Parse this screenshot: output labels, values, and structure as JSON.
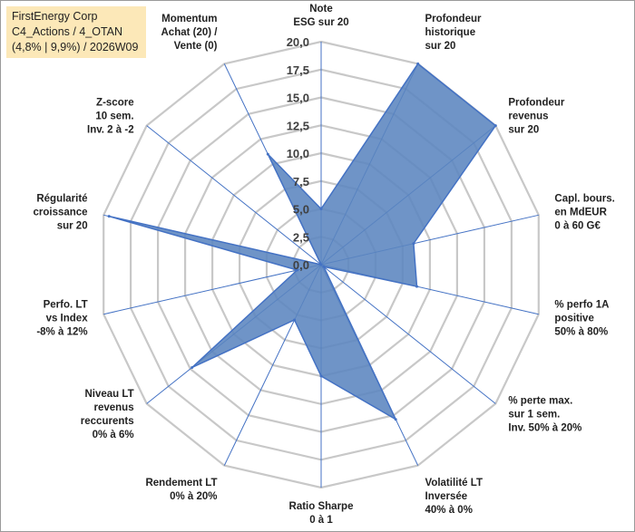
{
  "title": {
    "company": "FirstEnergy Corp",
    "portfolio": "C4_Actions / 4_OTAN",
    "info": "(4,8% | 9,9%) / 2026W09"
  },
  "colors": {
    "fill": "#5b85bf",
    "stroke": "#4472c4",
    "grid": "#c8c8c8",
    "axis": "#4472c4",
    "title_bg": "#fce8b8"
  },
  "chart_data": {
    "type": "radar",
    "rmin": 0,
    "rmax": 20,
    "tick_values": [
      0,
      2.5,
      5,
      7.5,
      10,
      12.5,
      15,
      17.5,
      20
    ],
    "tick_labels": [
      "0,0",
      "2,5",
      "5,0",
      "7,5",
      "10,0",
      "12,5",
      "15,0",
      "17,5",
      "20,0"
    ],
    "axes": [
      {
        "label": [
          "Note",
          "ESG sur 20"
        ],
        "value": 5.0
      },
      {
        "label": [
          "Profondeur",
          "historique",
          "sur 20"
        ],
        "value": 20.0
      },
      {
        "label": [
          "Profondeur",
          "revenus",
          "sur 20"
        ],
        "value": 20.0
      },
      {
        "label": [
          "Capl. bours.",
          "en MdEUR",
          "0 à 60 G€"
        ],
        "value": 8.5
      },
      {
        "label": [
          "% perfo 1A",
          "positive",
          "50% à 80%"
        ],
        "value": 8.8
      },
      {
        "label": [
          "% perte max.",
          "sur 1 sem.",
          "Inv. 50% à 20%"
        ],
        "value": 0.3
      },
      {
        "label": [
          "Volatilité LT",
          "Inversée",
          "40% à 0%"
        ],
        "value": 15.4
      },
      {
        "label": [
          "Ratio Sharpe",
          "0 à 1"
        ],
        "value": 10.0
      },
      {
        "label": [
          "Rendement LT",
          "0% à 20%"
        ],
        "value": 5.5
      },
      {
        "label": [
          "Niveau LT",
          "revenus",
          "reccurents",
          "0% à 6%"
        ],
        "value": 14.8
      },
      {
        "label": [
          "Perfo. LT",
          "vs Index",
          "-8% à 12%"
        ],
        "value": 2.2
      },
      {
        "label": [
          "Régularité",
          "croissance",
          "sur 20"
        ],
        "value": 19.5
      },
      {
        "label": [
          "Z-score",
          "10 sem.",
          "Inv. 2 à -2"
        ],
        "value": 0.0
      },
      {
        "label": [
          "Momentum",
          "Achat (20) /",
          "Vente (0)"
        ],
        "value": 11.0
      }
    ]
  }
}
